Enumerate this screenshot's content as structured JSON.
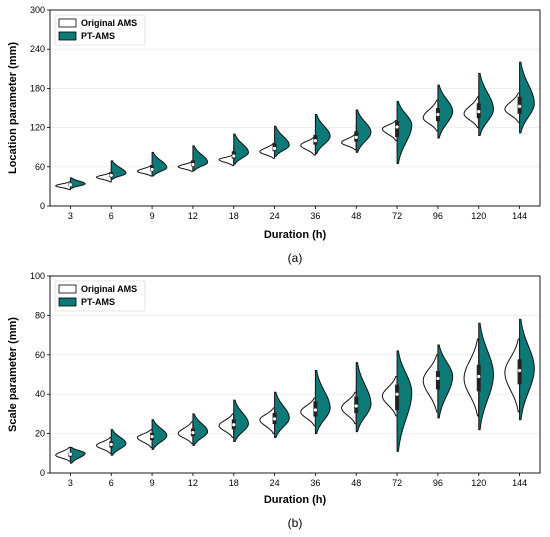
{
  "colors": {
    "original": "#ffffff",
    "pt": "#0e7a78",
    "outline": "#111111"
  },
  "chart_data": [
    {
      "type": "violin",
      "caption": "(a)",
      "xlabel": "Duration (h)",
      "ylabel": "Location parameter (mm)",
      "ylim": [
        0,
        300
      ],
      "yticks": [
        0,
        60,
        120,
        180,
        240,
        300
      ],
      "categories": [
        "3",
        "6",
        "9",
        "12",
        "18",
        "24",
        "36",
        "48",
        "72",
        "96",
        "120",
        "144"
      ],
      "grid": "horizontal",
      "legend": {
        "placement": "top-left",
        "entries": [
          "Original AMS",
          "PT-AMS"
        ]
      },
      "series": [
        {
          "name": "Original AMS",
          "side": "left",
          "median": [
            31,
            44,
            53,
            60,
            71,
            83,
            93,
            97,
            118,
            135,
            141,
            148
          ],
          "min": [
            25,
            37,
            46,
            53,
            62,
            73,
            78,
            86,
            100,
            115,
            120,
            128
          ],
          "max": [
            37,
            51,
            62,
            68,
            78,
            96,
            106,
            110,
            131,
            162,
            167,
            173
          ]
        },
        {
          "name": "PT-AMS",
          "side": "right",
          "median": [
            34,
            50,
            59,
            67,
            82,
            93,
            107,
            113,
            124,
            145,
            148,
            157
          ],
          "min": [
            27,
            41,
            46,
            54,
            64,
            76,
            80,
            82,
            65,
            104,
            108,
            112
          ],
          "max": [
            43,
            69,
            82,
            92,
            110,
            122,
            140,
            147,
            160,
            185,
            203,
            220
          ]
        }
      ]
    },
    {
      "type": "violin",
      "caption": "(b)",
      "xlabel": "Duration (h)",
      "ylabel": "Scale parameter (mm)",
      "ylim": [
        0,
        100
      ],
      "yticks": [
        0,
        20,
        40,
        60,
        80,
        100
      ],
      "categories": [
        "3",
        "6",
        "9",
        "12",
        "18",
        "24",
        "36",
        "48",
        "72",
        "96",
        "120",
        "144"
      ],
      "grid": "horizontal",
      "legend": {
        "placement": "top-left",
        "entries": [
          "Original AMS",
          "PT-AMS"
        ]
      },
      "series": [
        {
          "name": "Original AMS",
          "side": "left",
          "median": [
            9,
            14,
            18,
            20,
            24,
            27,
            31,
            33,
            39,
            47,
            48,
            51
          ],
          "min": [
            6,
            10,
            13,
            15,
            18,
            20,
            24,
            25,
            29,
            31,
            29,
            31
          ],
          "max": [
            13,
            18,
            22,
            26,
            30,
            33,
            38,
            41,
            49,
            60,
            68,
            68
          ]
        },
        {
          "name": "PT-AMS",
          "side": "right",
          "median": [
            10,
            15,
            19,
            21,
            25,
            28,
            33,
            35,
            41,
            49,
            50,
            53
          ],
          "min": [
            5,
            9,
            12,
            14,
            16,
            18,
            20,
            21,
            11,
            28,
            22,
            27
          ],
          "max": [
            13,
            22,
            27,
            30,
            37,
            41,
            52,
            56,
            62,
            65,
            76,
            78
          ]
        }
      ]
    }
  ]
}
